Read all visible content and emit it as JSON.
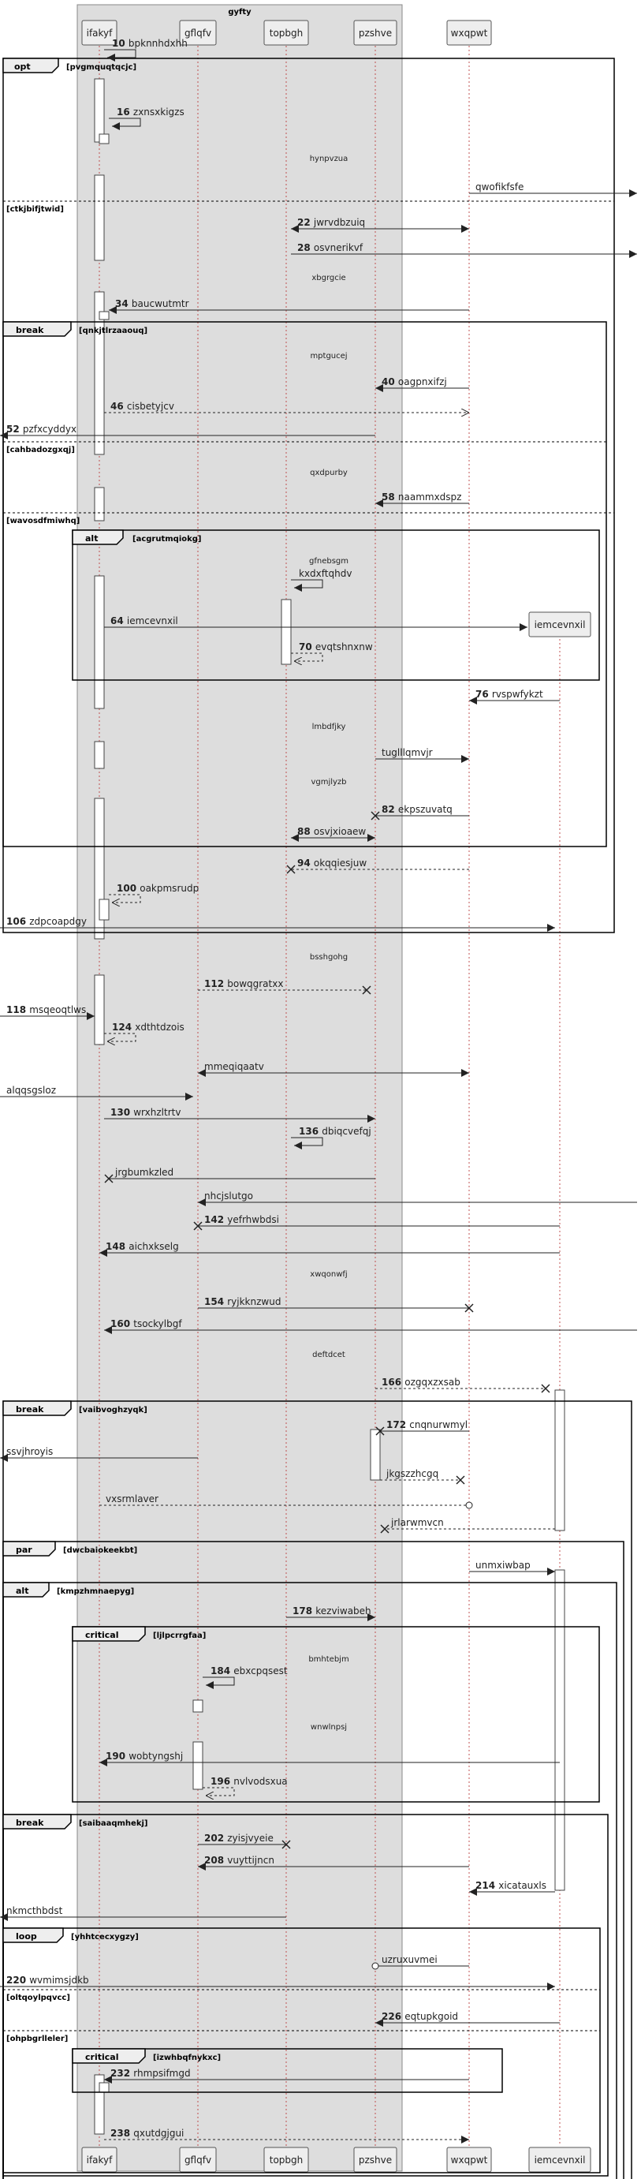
{
  "box_title": "gyfty",
  "participants": [
    "ifakyf",
    "gflqfv",
    "topbgh",
    "pzshve",
    "wxqpwt",
    "iemcevnxil"
  ],
  "dividers": [
    "hynpvzua",
    "xbgrgcie",
    "mptgucej",
    "qxdpurby",
    "gfnebsgm",
    "lmbdfjky",
    "vgmjlyzb",
    "bsshgohg",
    "xwqonwfj",
    "deftdcet",
    "bmhtebjm",
    "wnwlnpsj"
  ],
  "messages": [
    {
      "num": "10",
      "text": "bpknnhdxhh"
    },
    {
      "num": "16",
      "text": "zxnsxkigzs"
    },
    {
      "num": "",
      "text": "qwofikfsfe"
    },
    {
      "num": "22",
      "text": "jwrvdbzuiq"
    },
    {
      "num": "28",
      "text": "osvnerikvf"
    },
    {
      "num": "34",
      "text": "baucwutmtr"
    },
    {
      "num": "40",
      "text": "oagpnxifzj"
    },
    {
      "num": "46",
      "text": "cisbetyjcv"
    },
    {
      "num": "52",
      "text": "pzfxcyddyx"
    },
    {
      "num": "58",
      "text": "naammxdspz"
    },
    {
      "num": "",
      "text": "kxdxftqhdv"
    },
    {
      "num": "64",
      "text": "iemcevnxil"
    },
    {
      "num": "70",
      "text": "evqtshnxnw"
    },
    {
      "num": "76",
      "text": "rvspwfykzt"
    },
    {
      "num": "",
      "text": "tuglllqmvjr"
    },
    {
      "num": "82",
      "text": "ekpszuvatq"
    },
    {
      "num": "88",
      "text": "osvjxioaew"
    },
    {
      "num": "94",
      "text": "okqqiesjuw"
    },
    {
      "num": "100",
      "text": "oakpmsrudp"
    },
    {
      "num": "106",
      "text": "zdpcoapdgy"
    },
    {
      "num": "112",
      "text": "bowqgratxx"
    },
    {
      "num": "118",
      "text": "msqeoqtlws"
    },
    {
      "num": "124",
      "text": "xdthtdzois"
    },
    {
      "num": "",
      "text": "mmeqiqaatv"
    },
    {
      "num": "",
      "text": "alqqsgsloz"
    },
    {
      "num": "130",
      "text": "wrxhzltrtv"
    },
    {
      "num": "136",
      "text": "dbiqcvefqj"
    },
    {
      "num": "",
      "text": "jrgbumkzled"
    },
    {
      "num": "",
      "text": "nhcjslutgo"
    },
    {
      "num": "142",
      "text": "yefrhwbdsi"
    },
    {
      "num": "148",
      "text": "aichxkselg"
    },
    {
      "num": "154",
      "text": "ryjkknzwud"
    },
    {
      "num": "160",
      "text": "tsockylbgf"
    },
    {
      "num": "166",
      "text": "ozgqxzxsab"
    },
    {
      "num": "172",
      "text": "cnqnurwmyl"
    },
    {
      "num": "",
      "text": "ssvjhroyis"
    },
    {
      "num": "",
      "text": "jkgszzhcgq"
    },
    {
      "num": "",
      "text": "vxsrmlaver"
    },
    {
      "num": "",
      "text": "jrlarwmvcn"
    },
    {
      "num": "",
      "text": "unmxiwbap"
    },
    {
      "num": "178",
      "text": "kezviwabeh"
    },
    {
      "num": "184",
      "text": "ebxcpqsest"
    },
    {
      "num": "190",
      "text": "wobtyngshj"
    },
    {
      "num": "196",
      "text": "nvlvodsxua"
    },
    {
      "num": "202",
      "text": "zyisjvyeie"
    },
    {
      "num": "208",
      "text": "vuyttijncn"
    },
    {
      "num": "214",
      "text": "xicatauxls"
    },
    {
      "num": "",
      "text": "nkmcthbdst"
    },
    {
      "num": "",
      "text": "uzruxuvmei"
    },
    {
      "num": "220",
      "text": "wvmimsjdkb"
    },
    {
      "num": "226",
      "text": "eqtupkgoid"
    },
    {
      "num": "232",
      "text": "rhmpsifmgd"
    },
    {
      "num": "238",
      "text": "qxutdgjgui"
    }
  ],
  "fragments": [
    {
      "kind": "opt",
      "guard": "[pvgmquqtqcjc]"
    },
    {
      "kind": "",
      "guard": "[ctkjbifjtwid]"
    },
    {
      "kind": "break",
      "guard": "[qnkjtlrzaaouq]"
    },
    {
      "kind": "",
      "guard": "[cahbadozgxqj]"
    },
    {
      "kind": "",
      "guard": "[wavosdfmiwhq]"
    },
    {
      "kind": "alt",
      "guard": "[acgrutmqiokg]"
    },
    {
      "kind": "break",
      "guard": "[vaibvoghzyqk]"
    },
    {
      "kind": "par",
      "guard": "[dwcbaiokeekbt]"
    },
    {
      "kind": "alt",
      "guard": "[kmpzhmnaepyg]"
    },
    {
      "kind": "critical",
      "guard": "[ljlpcrrgfaa]"
    },
    {
      "kind": "break",
      "guard": "[saibaaqmhekj]"
    },
    {
      "kind": "loop",
      "guard": "[yhhtcecxygzy]"
    },
    {
      "kind": "",
      "guard": "[oltqoylpqvcc]"
    },
    {
      "kind": "",
      "guard": "[ohpbgrlleler]"
    },
    {
      "kind": "critical",
      "guard": "[izwhbqfnykxc]"
    }
  ]
}
